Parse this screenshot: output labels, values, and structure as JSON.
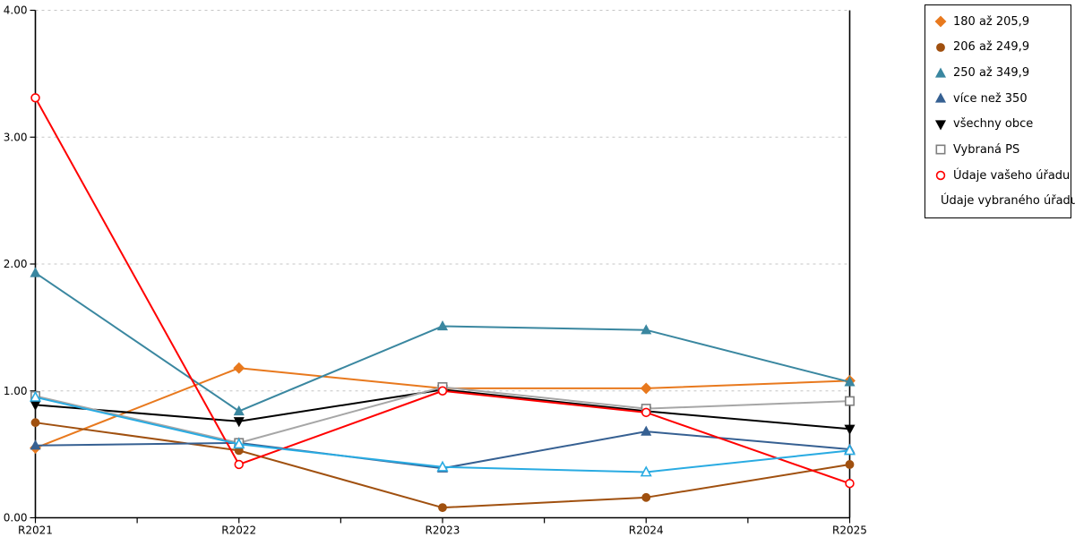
{
  "chart_data": {
    "type": "line",
    "categories": [
      "R2021",
      "R2022",
      "R2023",
      "R2024",
      "R2025"
    ],
    "series": [
      {
        "name": "180 až 205,9",
        "color": "#E8791E",
        "marker": "diamond",
        "fill": "solid",
        "values": [
          0.55,
          1.18,
          1.02,
          1.02,
          1.08
        ]
      },
      {
        "name": "206 až 249,9",
        "color": "#A0500F",
        "marker": "circle",
        "fill": "solid",
        "values": [
          0.75,
          0.53,
          0.08,
          0.16,
          0.42
        ]
      },
      {
        "name": "250 až 349,9",
        "color": "#3A87A0",
        "marker": "triangle-up",
        "fill": "solid",
        "values": [
          1.93,
          0.84,
          1.51,
          1.48,
          1.07
        ]
      },
      {
        "name": "více než 350",
        "color": "#366092",
        "marker": "triangle-up",
        "fill": "solid",
        "values": [
          0.57,
          0.59,
          0.39,
          0.68,
          0.54
        ]
      },
      {
        "name": "všechny obce",
        "color": "#000000",
        "marker": "triangle-down",
        "fill": "solid",
        "values": [
          0.89,
          0.76,
          1.01,
          0.84,
          0.7
        ]
      },
      {
        "name": "Vybraná PS",
        "color": "#A6A6A6",
        "marker_color": "#7F7F7F",
        "marker": "square",
        "fill": "open",
        "values": [
          0.96,
          0.59,
          1.03,
          0.86,
          0.92
        ]
      },
      {
        "name": "Údaje vašeho úřadu",
        "color": "#FF0000",
        "marker": "circle",
        "fill": "open",
        "values": [
          3.31,
          0.42,
          1.0,
          0.83,
          0.27
        ]
      },
      {
        "name": "Údaje vybraného úřadu",
        "color": "#29ABE2",
        "marker": "triangle-up",
        "fill": "open",
        "values": [
          0.95,
          0.58,
          0.4,
          0.36,
          0.53
        ]
      }
    ],
    "ylim": [
      0,
      4
    ],
    "ytick_labels": [
      "0.00",
      "1.00",
      "2.00",
      "3.00",
      "4.00"
    ],
    "xlabel": "",
    "ylabel": "",
    "title": "",
    "grid": "horizontal-dashed",
    "gridline_color": "#C6C6C6",
    "axis_color": "#000000",
    "legend_position": "outside-top-right"
  }
}
